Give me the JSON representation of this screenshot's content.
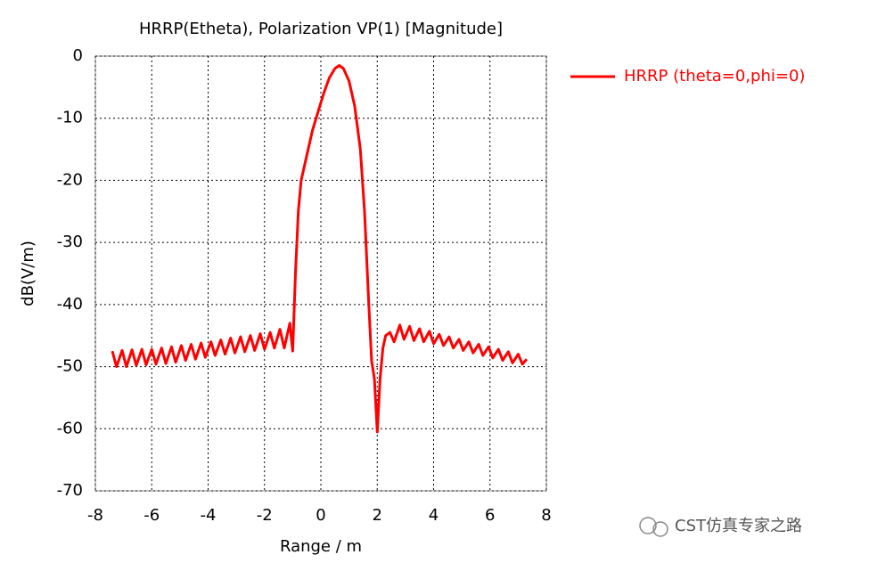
{
  "chart_data": {
    "type": "line",
    "title": "HRRP(Etheta), Polarization VP(1) [Magnitude]",
    "xlabel": "Range / m",
    "ylabel": "dB(V/m)",
    "xlim": [
      -8,
      8
    ],
    "xticks": [
      -8,
      -6,
      -4,
      -2,
      0,
      2,
      4,
      6,
      8
    ],
    "ylim": [
      -70,
      0
    ],
    "yticks": [
      -70,
      -60,
      -50,
      -40,
      -30,
      -20,
      -10,
      0
    ],
    "grid": true,
    "legend": "right",
    "watermark": "CST仿真专家之路",
    "x": [
      -7.4,
      -7.25,
      -7.05,
      -6.9,
      -6.7,
      -6.55,
      -6.35,
      -6.2,
      -6.0,
      -5.85,
      -5.65,
      -5.5,
      -5.3,
      -5.15,
      -4.95,
      -4.8,
      -4.6,
      -4.45,
      -4.25,
      -4.1,
      -3.9,
      -3.75,
      -3.55,
      -3.4,
      -3.2,
      -3.05,
      -2.85,
      -2.7,
      -2.5,
      -2.35,
      -2.15,
      -2.0,
      -1.8,
      -1.65,
      -1.45,
      -1.3,
      -1.1,
      -1.0,
      -0.9,
      -0.8,
      -0.7,
      -0.5,
      -0.3,
      -0.1,
      0.1,
      0.3,
      0.5,
      0.65,
      0.8,
      1.0,
      1.2,
      1.4,
      1.55,
      1.7,
      1.8,
      1.9,
      2.0,
      2.1,
      2.2,
      2.3,
      2.45,
      2.6,
      2.8,
      2.95,
      3.15,
      3.3,
      3.5,
      3.65,
      3.85,
      4.0,
      4.2,
      4.35,
      4.55,
      4.7,
      4.9,
      5.05,
      5.25,
      5.4,
      5.6,
      5.75,
      5.95,
      6.1,
      6.3,
      6.45,
      6.65,
      6.8,
      7.0,
      7.15,
      7.3
    ],
    "series": [
      {
        "name": "HRRP (theta=0,phi=0)",
        "color": "#ff0000",
        "values": [
          -47.5,
          -50,
          -47.4,
          -50,
          -47.3,
          -49.8,
          -47.2,
          -49.7,
          -47.2,
          -49.6,
          -47.0,
          -49.5,
          -46.8,
          -49.3,
          -46.6,
          -49.0,
          -46.4,
          -48.8,
          -46.2,
          -48.5,
          -46.0,
          -48.2,
          -45.7,
          -48.0,
          -45.4,
          -47.8,
          -45.2,
          -47.6,
          -45.0,
          -47.4,
          -44.7,
          -47.2,
          -44.5,
          -47.0,
          -44.0,
          -47.0,
          -43.0,
          -47.5,
          -35,
          -25,
          -20,
          -16,
          -12,
          -9,
          -6,
          -3.5,
          -2,
          -1.5,
          -2,
          -4,
          -8,
          -15,
          -25,
          -40,
          -49,
          -52,
          -60.5,
          -52,
          -47,
          -45,
          -44.5,
          -46,
          -43.3,
          -45.6,
          -43.5,
          -45.8,
          -43.9,
          -46,
          -44.3,
          -46.3,
          -44.8,
          -46.6,
          -45.2,
          -47,
          -45.6,
          -47.4,
          -46,
          -47.8,
          -46.4,
          -48.2,
          -46.8,
          -48.6,
          -47.2,
          -49,
          -47.6,
          -49.4,
          -48,
          -49.6,
          -48.8
        ]
      }
    ]
  }
}
